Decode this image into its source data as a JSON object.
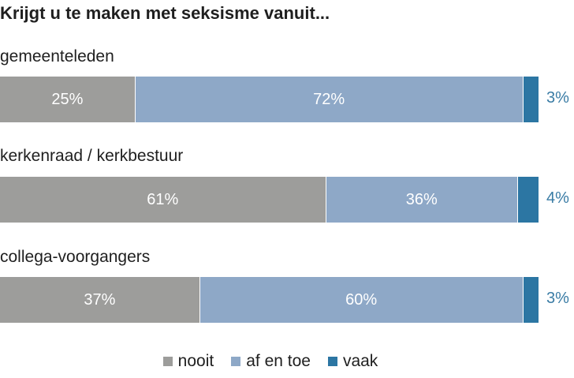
{
  "chart_data": {
    "type": "bar",
    "orientation": "horizontal",
    "stacked": true,
    "title": "Krijgt u te maken met seksisme vanuit...",
    "categories": [
      "gemeenteleden",
      "kerkenraad / kerkbestuur",
      "collega-voorgangers"
    ],
    "series": [
      {
        "name": "nooit",
        "color": "#9d9d9b",
        "values": [
          25,
          61,
          37
        ],
        "labels": [
          "25%",
          "61%",
          "37%"
        ]
      },
      {
        "name": "af en toe",
        "color": "#8ea8c7",
        "values": [
          72,
          36,
          60
        ],
        "labels": [
          "72%",
          "36%",
          "60%"
        ]
      },
      {
        "name": "vaak",
        "color": "#2c76a3",
        "values": [
          3,
          4,
          3
        ],
        "labels": [
          "3%",
          "4%",
          "3%"
        ]
      }
    ],
    "xlim": [
      0,
      100
    ],
    "legend_position": "bottom"
  }
}
